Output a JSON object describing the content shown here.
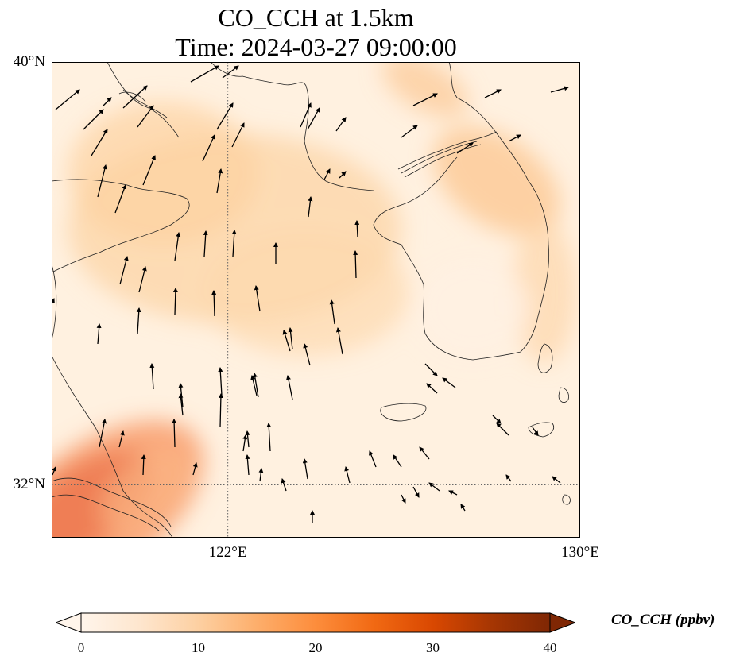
{
  "title": {
    "line1": "CO_CCH at 1.5km",
    "line2": "Time: 2024-03-27 09:00:00"
  },
  "map": {
    "extent": {
      "lon_min": 118,
      "lon_max": 130,
      "lat_min": 31,
      "lat_max": 40
    },
    "lat_ticks": [
      {
        "value": 40,
        "label": "40°N"
      },
      {
        "value": 32,
        "label": "32°N"
      }
    ],
    "lon_ticks": [
      {
        "value": 122,
        "label": "122°E"
      },
      {
        "value": 130,
        "label": "130°E"
      }
    ],
    "gridlines": {
      "lon": 122,
      "lat": 32,
      "style": "dotted"
    },
    "field_name": "CO_CCH",
    "units": "ppbv"
  },
  "colorbar": {
    "label": "CO_CCH (ppbv)",
    "min": 0,
    "max": 40,
    "ticks": [
      "0",
      "10",
      "20",
      "30",
      "40"
    ],
    "colors": [
      "#fff5eb",
      "#fee6ce",
      "#fdd0a2",
      "#fdae6b",
      "#fd8d3c",
      "#f16913",
      "#d94801",
      "#a63603",
      "#7f2704"
    ],
    "extend": "both"
  }
}
